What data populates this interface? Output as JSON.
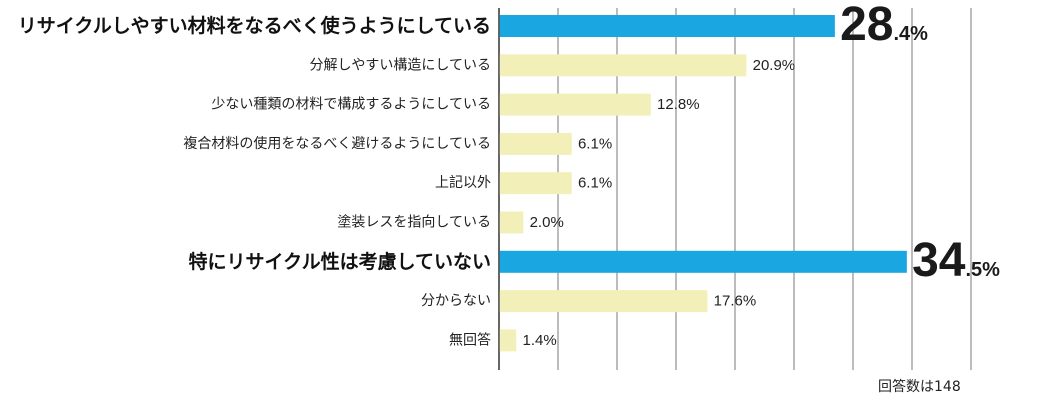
{
  "chart_data": {
    "type": "bar",
    "orientation": "horizontal",
    "categories": [
      "リサイクルしやすい材料をなるべく使うようにしている",
      "分解しやすい構造にしている",
      "少ない種類の材料で構成するようにしている",
      "複合材料の使用をなるべく避けるようにしている",
      "上記以外",
      "塗装レスを指向している",
      "特にリサイクル性は考慮していない",
      "分からない",
      "無回答"
    ],
    "values": [
      28.4,
      20.9,
      12.8,
      6.1,
      6.1,
      2.0,
      34.5,
      17.6,
      1.4
    ],
    "value_labels": [
      "28.4%",
      "20.9%",
      "12.8%",
      "6.1%",
      "6.1%",
      "2.0%",
      "34.5%",
      "17.6%",
      "1.4%"
    ],
    "highlight": [
      true,
      false,
      false,
      false,
      false,
      false,
      true,
      false,
      false
    ],
    "unit": "%",
    "xlim": [
      0,
      40
    ],
    "gridlines": true,
    "title": "",
    "xlabel": "",
    "ylabel": ""
  },
  "colors": {
    "highlight_bar": "#1aa6e0",
    "normal_bar": "#f2f0b8",
    "grid": "#7a7a7a",
    "axis": "#333333"
  },
  "note": "回答数は148"
}
